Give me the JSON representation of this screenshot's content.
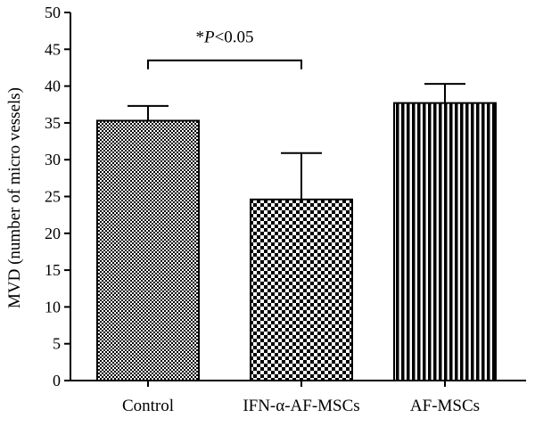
{
  "chart_data": {
    "type": "bar",
    "title": "",
    "xlabel": "",
    "ylabel": "MVD (number of micro vessels)",
    "ylim": [
      0,
      50
    ],
    "yticks": [
      0,
      5,
      10,
      15,
      20,
      25,
      30,
      35,
      40,
      45,
      50
    ],
    "categories": [
      "Control",
      "IFN-α-AF-MSCs",
      "AF-MSCs"
    ],
    "values": [
      35.3,
      24.6,
      37.7
    ],
    "error_upper": [
      2.0,
      6.3,
      2.6
    ],
    "bar_patterns": [
      "fine-checker",
      "coarse-checker",
      "vertical-stripes"
    ],
    "grid": false,
    "legend": "none",
    "annotations": [
      {
        "from_category": "Control",
        "to_category": "IFN-α-AF-MSCs",
        "bracket_y": 43.5,
        "text_prefix": "*",
        "text_italic": "P",
        "text_suffix": "<0.05"
      }
    ]
  },
  "colors": {
    "bar_fill_dark": "#000000",
    "bar_fill_light": "#ffffff",
    "axis": "#000000"
  }
}
